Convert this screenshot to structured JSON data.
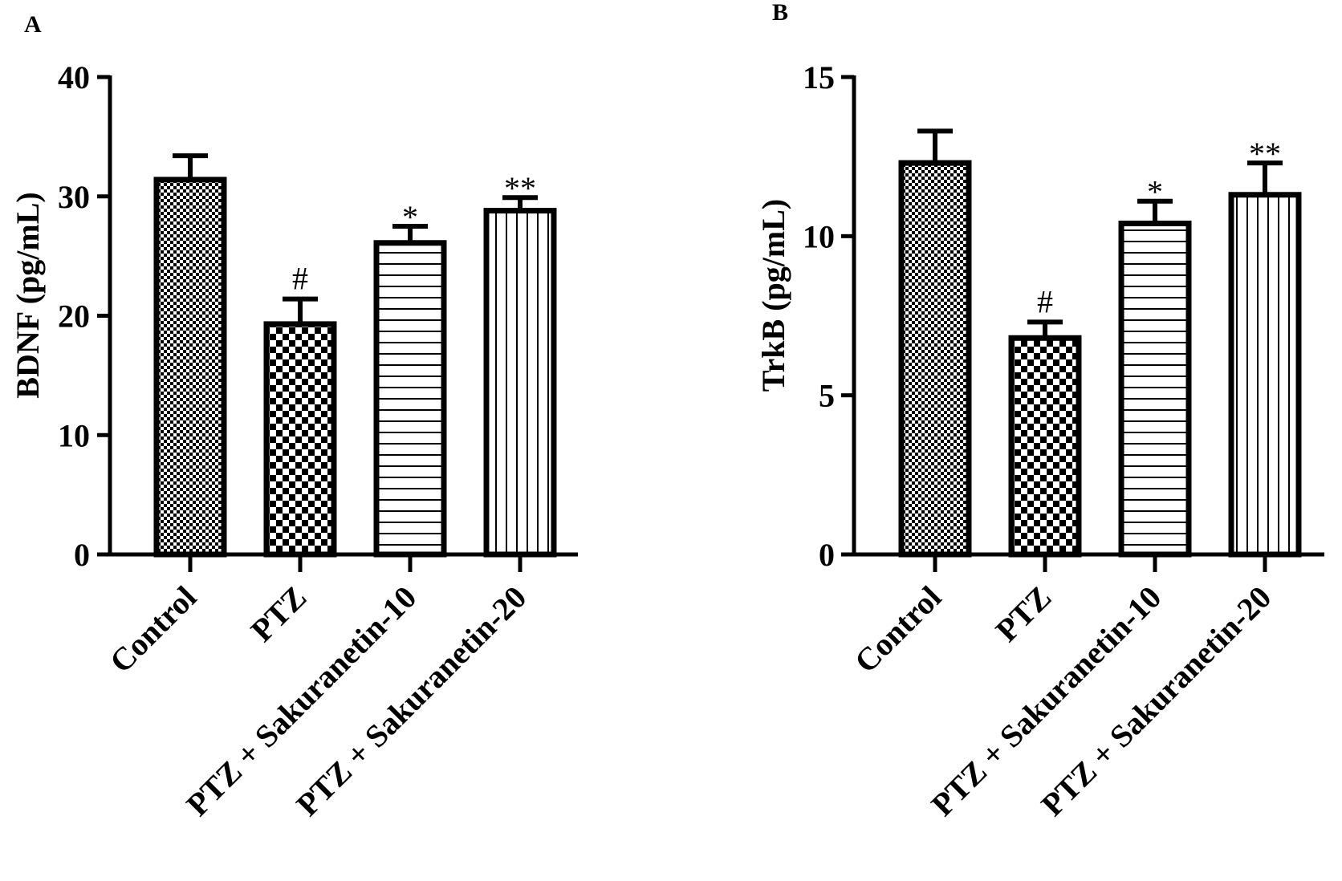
{
  "chart_data": [
    {
      "panel": "A",
      "type": "bar",
      "ylabel": "BDNF (pg/mL)",
      "xlabel": "",
      "ylim": [
        0,
        40
      ],
      "yticks": [
        0,
        10,
        20,
        30,
        40
      ],
      "categories": [
        "Control",
        "PTZ",
        "PTZ + Sakuranetin-10",
        "PTZ + Sakuranetin-20"
      ],
      "values": [
        31.4,
        19.3,
        26.1,
        28.8
      ],
      "errors": [
        2.0,
        2.1,
        1.4,
        1.1
      ],
      "patterns": [
        "fine-check",
        "coarse-check",
        "horizontal-lines",
        "vertical-lines"
      ],
      "significance": [
        "",
        "#",
        "*",
        "**"
      ]
    },
    {
      "panel": "B",
      "type": "bar",
      "ylabel": "TrkB (pg/mL)",
      "xlabel": "",
      "ylim": [
        0,
        15
      ],
      "yticks": [
        0,
        5,
        10,
        15
      ],
      "categories": [
        "Control",
        "PTZ",
        "PTZ + Sakuranetin-10",
        "PTZ + Sakuranetin-20"
      ],
      "values": [
        12.3,
        6.8,
        10.4,
        11.3
      ],
      "errors": [
        1.0,
        0.5,
        0.7,
        1.0
      ],
      "patterns": [
        "fine-check",
        "coarse-check",
        "horizontal-lines",
        "vertical-lines"
      ],
      "significance": [
        "",
        "#",
        "*",
        "**"
      ]
    }
  ]
}
